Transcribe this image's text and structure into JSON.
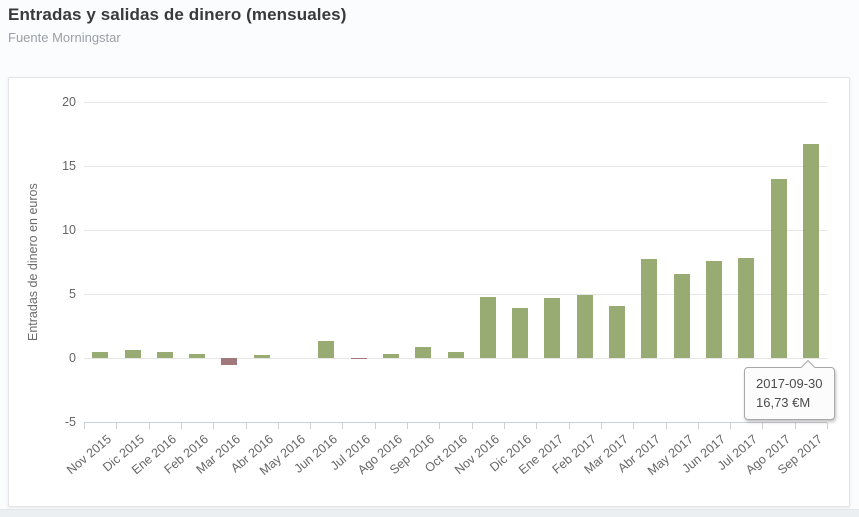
{
  "header": {
    "title": "Entradas y salidas de dinero (mensuales)",
    "subtitle": "Fuente Morningstar"
  },
  "chart_data": {
    "type": "bar",
    "title": "Entradas y salidas de dinero (mensuales)",
    "subtitle": "Fuente Morningstar",
    "xlabel": "",
    "ylabel": "Entradas de dinero en euros",
    "ylim": [
      -5,
      20
    ],
    "yticks": [
      20,
      15,
      10,
      5,
      0,
      -5
    ],
    "grid": true,
    "legend": false,
    "categories": [
      "Nov 2015",
      "Dic 2015",
      "Ene 2016",
      "Feb 2016",
      "Mar 2016",
      "Abr 2016",
      "May 2016",
      "Jun 2016",
      "Jul 2016",
      "Ago 2016",
      "Sep 2016",
      "Oct 2016",
      "Nov 2016",
      "Dic 2016",
      "Ene 2017",
      "Feb 2017",
      "Mar 2017",
      "Abr 2017",
      "May 2017",
      "Jun 2017",
      "Jul 2017",
      "Ago 2017",
      "Sep 2017"
    ],
    "values": [
      0.45,
      0.65,
      0.45,
      0.3,
      -0.55,
      0.25,
      0,
      1.3,
      -0.1,
      0.3,
      0.85,
      0.5,
      4.75,
      3.9,
      4.7,
      4.95,
      4.1,
      7.7,
      6.6,
      7.6,
      7.8,
      13.95,
      16.73
    ],
    "colors": {
      "positive_bar": "#97ab72",
      "negative_bar": "#a2787c",
      "grid": "#e6e6e6",
      "axis": "#ccd1d5"
    },
    "tooltip": {
      "date": "2017-09-30",
      "value": "16,73 €M",
      "target_category": "Sep 2017"
    }
  }
}
